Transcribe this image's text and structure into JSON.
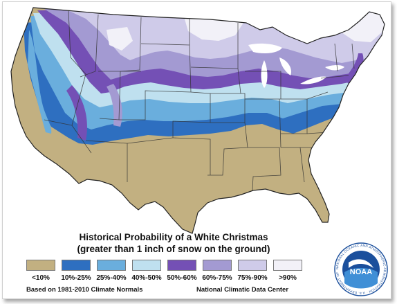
{
  "title": "Historical Probability of a White Christmas",
  "subtitle": "(greater than 1 inch of snow on the ground)",
  "legend": [
    {
      "label": "<10%",
      "color": "#c2b081"
    },
    {
      "label": "10%-25%",
      "color": "#2e6fc0"
    },
    {
      "label": "25%-40%",
      "color": "#6aaedd"
    },
    {
      "label": "40%-50%",
      "color": "#bfe0ef"
    },
    {
      "label": "50%-60%",
      "color": "#7450b5"
    },
    {
      "label": "60%-75%",
      "color": "#a39ad2"
    },
    {
      "label": "75%-90%",
      "color": "#cfcbe9"
    },
    {
      "label": ">90%",
      "color": "#f2f1f8"
    }
  ],
  "footer": {
    "left": "Based on 1981-2010 Climate Normals",
    "right": "National Climatic Data Center"
  },
  "logo": {
    "text": "NOAA",
    "ring_text": "NATIONAL OCEANIC AND ATMOSPHERIC ADMINISTRATION · U.S. DEPARTMENT OF COMMERCE",
    "icon": "noaa-logo-icon"
  }
}
